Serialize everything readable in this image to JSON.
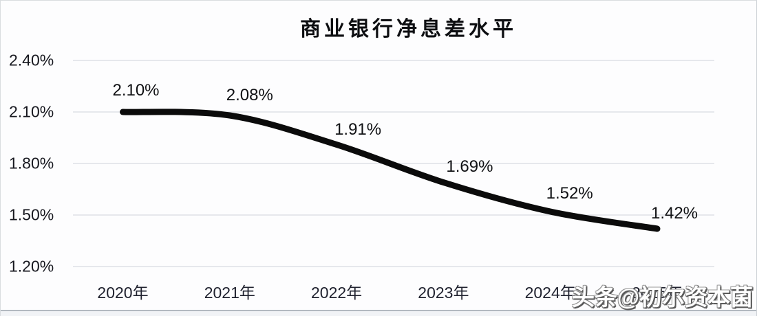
{
  "chart_data": {
    "type": "line",
    "title": "商业银行净息差水平",
    "categories": [
      "2020年",
      "2021年",
      "2022年",
      "2023年",
      "2024年",
      "2025年"
    ],
    "values": [
      2.1,
      2.08,
      1.91,
      1.69,
      1.52,
      1.42
    ],
    "point_labels": [
      "2.10%",
      "2.08%",
      "1.91%",
      "1.69%",
      "1.52%",
      "1.42%"
    ],
    "y_ticks": [
      "2.40%",
      "2.10%",
      "1.80%",
      "1.50%",
      "1.20%"
    ],
    "y_tick_values": [
      2.4,
      2.1,
      1.8,
      1.5,
      1.2
    ],
    "ylim": [
      1.2,
      2.4
    ],
    "xlabel": "",
    "ylabel": "",
    "grid": "horizontal",
    "legend": "none",
    "line_color": "#0b0b0b",
    "gridline_color": "#d8dce2",
    "background_color": "#fdfdfe",
    "data_label_color": "#101114",
    "axis_label_color": "#20222f"
  },
  "watermark": {
    "text": "头条@初尔资本菌",
    "color": "#ffffff"
  }
}
